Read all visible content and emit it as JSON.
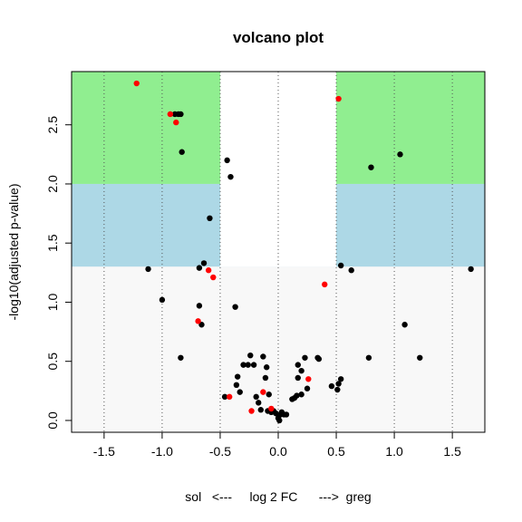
{
  "chart_data": {
    "type": "scatter",
    "title": "volcano plot",
    "xlabel": "sol   <---     log 2 FC      --->  greg",
    "ylabel": "-log10(adjusted p-value)",
    "xlim": [
      -1.78,
      1.78
    ],
    "ylim": [
      -0.1,
      2.95
    ],
    "x_ticks": [
      "-1.5",
      "-1.0",
      "-0.5",
      "0.0",
      "0.5",
      "1.0",
      "1.5"
    ],
    "y_ticks": [
      "0.0",
      "0.5",
      "1.0",
      "1.5",
      "2.0",
      "2.5"
    ],
    "grid": "vertical dotted lines at x ticks",
    "fc_threshold": 0.5,
    "regions": [
      {
        "y_from": 2.0,
        "y_to": 2.95,
        "color": "#90EE90"
      },
      {
        "y_from": 1.3,
        "y_to": 2.0,
        "color": "#ADD8E6"
      },
      {
        "y_from": -0.1,
        "y_to": 1.3,
        "color": "#F8F8F8"
      }
    ],
    "colors": {
      "default": "#000000",
      "highlight": "#FF0000"
    },
    "series": [
      {
        "color": "#000000",
        "points": [
          [
            -0.89,
            2.59
          ],
          [
            -0.86,
            2.59
          ],
          [
            -0.84,
            2.59
          ],
          [
            -0.83,
            2.27
          ],
          [
            -0.44,
            2.2
          ],
          [
            -0.41,
            2.06
          ],
          [
            -0.59,
            1.71
          ],
          [
            -1.12,
            1.28
          ],
          [
            -0.68,
            1.29
          ],
          [
            -0.64,
            1.33
          ],
          [
            -1.0,
            1.02
          ],
          [
            -0.68,
            0.97
          ],
          [
            -0.66,
            0.81
          ],
          [
            -0.37,
            0.96
          ],
          [
            -0.84,
            0.53
          ],
          [
            0.8,
            2.14
          ],
          [
            1.05,
            2.25
          ],
          [
            1.66,
            1.28
          ],
          [
            0.54,
            1.31
          ],
          [
            0.63,
            1.27
          ],
          [
            1.09,
            0.81
          ],
          [
            1.22,
            0.53
          ],
          [
            0.78,
            0.53
          ],
          [
            -0.46,
            0.2
          ],
          [
            -0.36,
            0.3
          ],
          [
            -0.35,
            0.37
          ],
          [
            -0.33,
            0.24
          ],
          [
            -0.3,
            0.47
          ],
          [
            -0.26,
            0.47
          ],
          [
            -0.24,
            0.55
          ],
          [
            -0.21,
            0.47
          ],
          [
            -0.19,
            0.2
          ],
          [
            -0.17,
            0.15
          ],
          [
            -0.15,
            0.09
          ],
          [
            -0.13,
            0.54
          ],
          [
            -0.11,
            0.36
          ],
          [
            -0.1,
            0.45
          ],
          [
            -0.09,
            0.08
          ],
          [
            -0.08,
            0.22
          ],
          [
            -0.06,
            0.07
          ],
          [
            -0.04,
            0.08
          ],
          [
            -0.02,
            0.06
          ],
          [
            0.0,
            0.02
          ],
          [
            0.01,
            0.0
          ],
          [
            0.02,
            0.05
          ],
          [
            0.03,
            0.07
          ],
          [
            0.05,
            0.05
          ],
          [
            0.07,
            0.05
          ],
          [
            0.12,
            0.18
          ],
          [
            0.14,
            0.19
          ],
          [
            0.16,
            0.21
          ],
          [
            0.17,
            0.47
          ],
          [
            0.17,
            0.36
          ],
          [
            0.2,
            0.42
          ],
          [
            0.2,
            0.22
          ],
          [
            0.23,
            0.53
          ],
          [
            0.25,
            0.27
          ],
          [
            0.34,
            0.53
          ],
          [
            0.35,
            0.52
          ],
          [
            0.46,
            0.29
          ],
          [
            0.51,
            0.26
          ],
          [
            0.52,
            0.31
          ],
          [
            0.54,
            0.35
          ]
        ]
      },
      {
        "color": "#FF0000",
        "points": [
          [
            -1.22,
            2.85
          ],
          [
            -0.93,
            2.59
          ],
          [
            -0.88,
            2.52
          ],
          [
            0.52,
            2.72
          ],
          [
            -0.6,
            1.27
          ],
          [
            -0.56,
            1.21
          ],
          [
            0.4,
            1.15
          ],
          [
            -0.69,
            0.84
          ],
          [
            0.26,
            0.35
          ],
          [
            -0.42,
            0.2
          ],
          [
            -0.23,
            0.08
          ],
          [
            -0.13,
            0.24
          ],
          [
            -0.06,
            0.1
          ]
        ]
      }
    ]
  }
}
